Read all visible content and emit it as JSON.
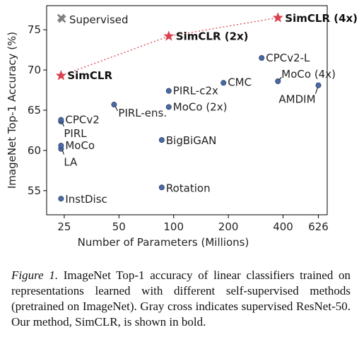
{
  "chart_data": {
    "type": "scatter",
    "xlabel": "Number of Parameters (Millions)",
    "ylabel": "ImageNet Top-1 Accuracy (%)",
    "x_scale": "log",
    "xlim": [
      20,
      700
    ],
    "ylim": [
      52,
      78
    ],
    "x_ticks": [
      25,
      50,
      100,
      200,
      400,
      626
    ],
    "y_ticks": [
      55,
      60,
      65,
      70,
      75
    ],
    "legend": {
      "label": "Supervised",
      "placement": "top-left"
    },
    "points": [
      {
        "label": "InstDisc",
        "x": 24,
        "y": 54.0,
        "group": "self-supervised"
      },
      {
        "label": "Rotation",
        "x": 86,
        "y": 55.4,
        "group": "self-supervised"
      },
      {
        "label": "BigBiGAN",
        "x": 86,
        "y": 61.3,
        "group": "self-supervised"
      },
      {
        "label": "LA",
        "x": 24,
        "y": 60.2,
        "group": "self-supervised"
      },
      {
        "label": "MoCo",
        "x": 24,
        "y": 60.6,
        "group": "self-supervised"
      },
      {
        "label": "PIRL",
        "x": 24,
        "y": 63.6,
        "group": "self-supervised"
      },
      {
        "label": "CPCv2",
        "x": 24,
        "y": 63.8,
        "group": "self-supervised"
      },
      {
        "label": "PIRL-ens.",
        "x": 47,
        "y": 65.7,
        "group": "self-supervised"
      },
      {
        "label": "MoCo (2x)",
        "x": 94,
        "y": 65.4,
        "group": "self-supervised"
      },
      {
        "label": "PIRL-c2x",
        "x": 94,
        "y": 67.4,
        "group": "self-supervised"
      },
      {
        "label": "CMC",
        "x": 188,
        "y": 68.4,
        "group": "self-supervised"
      },
      {
        "label": "CPCv2-L",
        "x": 305,
        "y": 71.5,
        "group": "self-supervised"
      },
      {
        "label": "MoCo (4x)",
        "x": 375,
        "y": 68.6,
        "group": "self-supervised"
      },
      {
        "label": "AMDIM",
        "x": 626,
        "y": 68.1,
        "group": "self-supervised"
      },
      {
        "label": "SimCLR",
        "x": 24,
        "y": 69.3,
        "group": "simclr"
      },
      {
        "label": "SimCLR (2x)",
        "x": 94,
        "y": 74.2,
        "group": "simclr"
      },
      {
        "label": "SimCLR (4x)",
        "x": 375,
        "y": 76.5,
        "group": "simclr"
      },
      {
        "label": "",
        "x": 24,
        "y": 76.5,
        "group": "supervised"
      }
    ]
  },
  "caption": {
    "figure_label": "Figure 1.",
    "text": "ImageNet Top-1 accuracy of linear classifiers trained on representations learned with different self-supervised methods (pretrained on ImageNet). Gray cross indicates supervised ResNet-50. Our method, SimCLR, is shown in bold."
  },
  "colors": {
    "point": "#4a6aa5",
    "point_edge": "#2b3f66",
    "simclr_star": "#d9434f",
    "simclr_line": "#d9434f",
    "supervised_cross": "#7f7f7f"
  }
}
